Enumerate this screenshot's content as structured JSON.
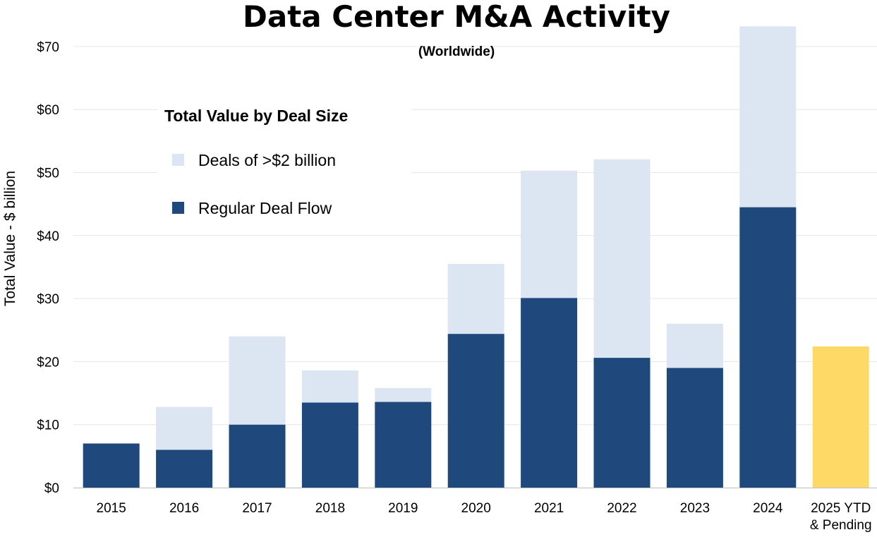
{
  "chart_data": {
    "type": "bar",
    "stacked": true,
    "title": "Data Center M&A Activity",
    "subtitle": "(Worldwide)",
    "ylabel": "Total Value - $ billion",
    "xlabel": "",
    "ylim": [
      0,
      70
    ],
    "yticks": [
      0,
      10,
      20,
      30,
      40,
      50,
      60,
      70
    ],
    "ytick_labels": [
      "$0",
      "$10",
      "$20",
      "$30",
      "$40",
      "$50",
      "$60",
      "$70"
    ],
    "grid": true,
    "categories": [
      "2015",
      "2016",
      "2017",
      "2018",
      "2019",
      "2020",
      "2021",
      "2022",
      "2023",
      "2024",
      "2025 YTD & Pending"
    ],
    "category_label_lines": [
      [
        "2015"
      ],
      [
        "2016"
      ],
      [
        "2017"
      ],
      [
        "2018"
      ],
      [
        "2019"
      ],
      [
        "2020"
      ],
      [
        "2021"
      ],
      [
        "2022"
      ],
      [
        "2023"
      ],
      [
        "2024"
      ],
      [
        "2025 YTD",
        "& Pending"
      ]
    ],
    "series": [
      {
        "name": "Regular Deal Flow",
        "color": "#1f497d",
        "values": [
          7.0,
          6.0,
          10.0,
          13.5,
          13.6,
          24.4,
          30.1,
          20.6,
          19.0,
          44.5,
          22.4
        ]
      },
      {
        "name": "Deals of >$2 billion",
        "color": "#dce6f2",
        "values": [
          0,
          6.8,
          14.0,
          5.1,
          2.2,
          11.1,
          20.2,
          31.5,
          7.0,
          28.7,
          0
        ]
      }
    ],
    "highlight": {
      "category": "2025 YTD & Pending",
      "color": "#ffd966"
    },
    "legend": {
      "title": "Total Value by Deal Size",
      "position": "upper-left",
      "entries": [
        {
          "label": "Deals of >$2 billion",
          "color": "#dce6f2"
        },
        {
          "label": "Regular Deal Flow",
          "color": "#1f497d"
        }
      ]
    }
  }
}
